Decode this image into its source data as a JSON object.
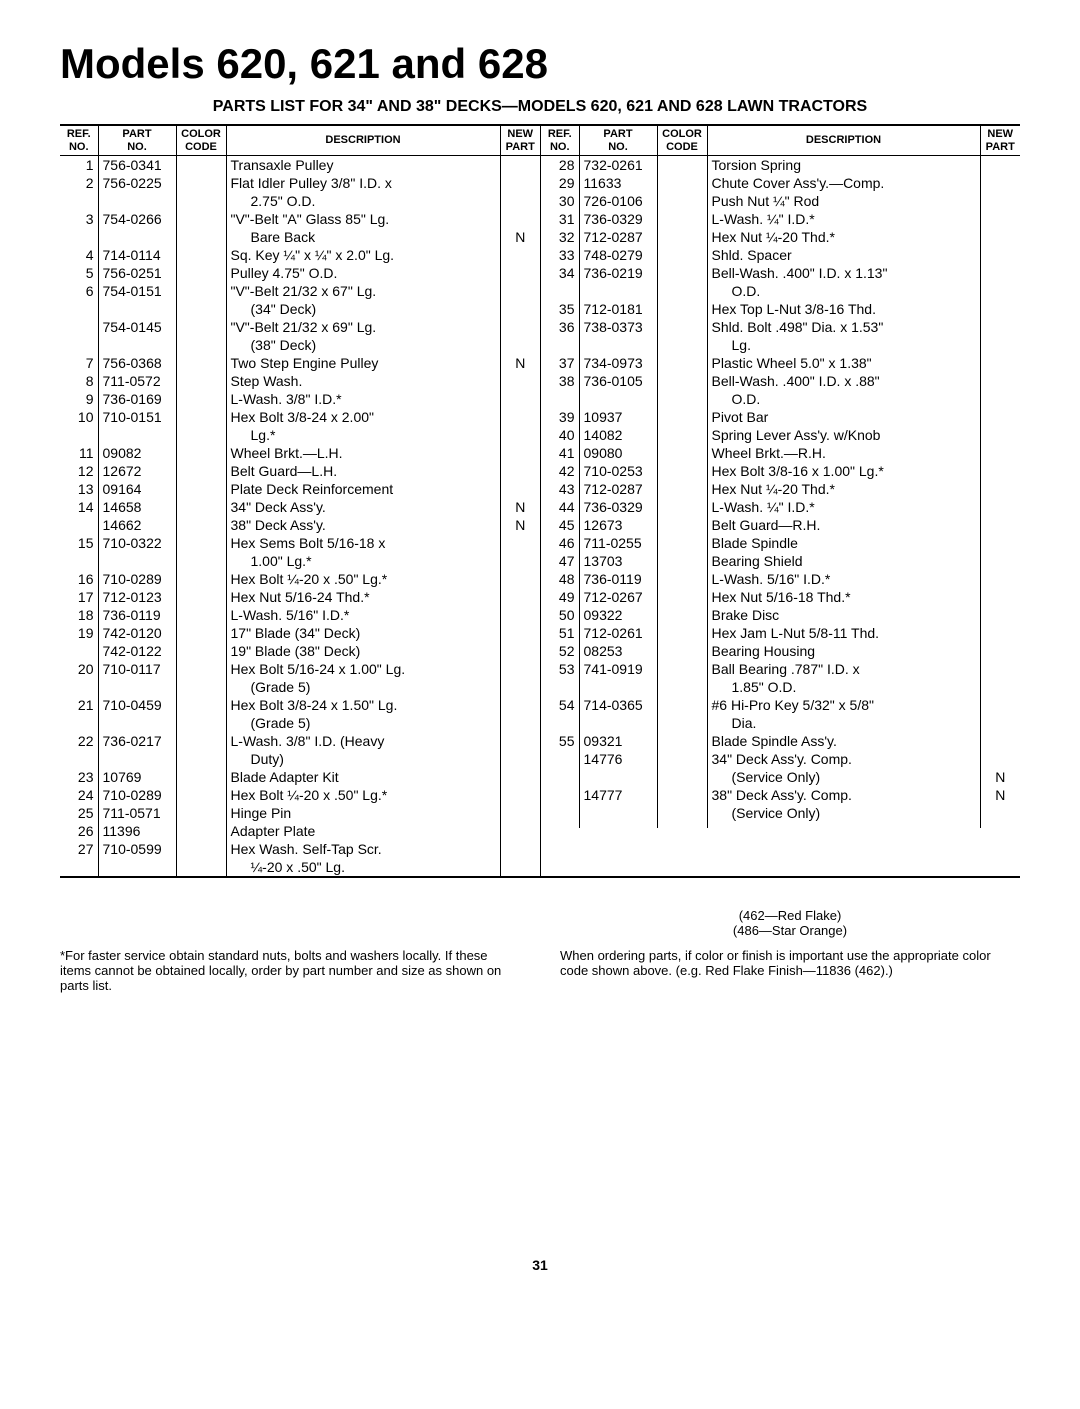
{
  "title": "Models 620, 621 and 628",
  "subtitle": "PARTS LIST FOR 34\" AND 38\" DECKS—MODELS 620, 621 AND 628 LAWN TRACTORS",
  "headers": {
    "ref": "REF.\nNO.",
    "part": "PART\nNO.",
    "color": "COLOR\nCODE",
    "desc": "DESCRIPTION",
    "new": "NEW\nPART"
  },
  "left_rows": [
    {
      "ref": "1",
      "part": "756-0341",
      "color": "",
      "desc": "Transaxle Pulley",
      "new": ""
    },
    {
      "ref": "2",
      "part": "756-0225",
      "color": "",
      "desc": "Flat Idler Pulley 3/8\" I.D. x",
      "new": ""
    },
    {
      "ref": "",
      "part": "",
      "color": "",
      "desc": "  2.75\" O.D.",
      "new": ""
    },
    {
      "ref": "3",
      "part": "754-0266",
      "color": "",
      "desc": "\"V\"-Belt \"A\" Glass 85\" Lg.",
      "new": ""
    },
    {
      "ref": "",
      "part": "",
      "color": "",
      "desc": "  Bare Back",
      "new": "N"
    },
    {
      "ref": "4",
      "part": "714-0114",
      "color": "",
      "desc": "Sq. Key ¼\" x ¼\" x 2.0\" Lg.",
      "new": ""
    },
    {
      "ref": "5",
      "part": "756-0251",
      "color": "",
      "desc": "Pulley 4.75\" O.D.",
      "new": ""
    },
    {
      "ref": "6",
      "part": "754-0151",
      "color": "",
      "desc": "\"V\"-Belt 21/32 x 67\" Lg.",
      "new": ""
    },
    {
      "ref": "",
      "part": "",
      "color": "",
      "desc": "  (34\" Deck)",
      "new": ""
    },
    {
      "ref": "",
      "part": "754-0145",
      "color": "",
      "desc": "\"V\"-Belt 21/32 x 69\" Lg.",
      "new": ""
    },
    {
      "ref": "",
      "part": "",
      "color": "",
      "desc": "  (38\" Deck)",
      "new": ""
    },
    {
      "ref": "7",
      "part": "756-0368",
      "color": "",
      "desc": "Two Step Engine Pulley",
      "new": "N"
    },
    {
      "ref": "8",
      "part": "711-0572",
      "color": "",
      "desc": "Step Wash.",
      "new": ""
    },
    {
      "ref": "9",
      "part": "736-0169",
      "color": "",
      "desc": "L-Wash. 3/8\" I.D.*",
      "new": ""
    },
    {
      "ref": "10",
      "part": "710-0151",
      "color": "",
      "desc": "Hex Bolt 3/8-24 x 2.00\"",
      "new": ""
    },
    {
      "ref": "",
      "part": "",
      "color": "",
      "desc": "  Lg.*",
      "new": ""
    },
    {
      "ref": "11",
      "part": "09082",
      "color": "",
      "desc": "Wheel Brkt.—L.H.",
      "new": ""
    },
    {
      "ref": "12",
      "part": "12672",
      "color": "",
      "desc": "Belt Guard—L.H.",
      "new": ""
    },
    {
      "ref": "13",
      "part": "09164",
      "color": "",
      "desc": "Plate Deck Reinforcement",
      "new": ""
    },
    {
      "ref": "14",
      "part": "14658",
      "color": "",
      "desc": "34\" Deck Ass'y.",
      "new": "N"
    },
    {
      "ref": "",
      "part": "14662",
      "color": "",
      "desc": "38\" Deck Ass'y.",
      "new": "N"
    },
    {
      "ref": "15",
      "part": "710-0322",
      "color": "",
      "desc": "Hex Sems Bolt 5/16-18 x",
      "new": ""
    },
    {
      "ref": "",
      "part": "",
      "color": "",
      "desc": "  1.00\" Lg.*",
      "new": ""
    },
    {
      "ref": "16",
      "part": "710-0289",
      "color": "",
      "desc": "Hex Bolt ¼-20 x .50\" Lg.*",
      "new": ""
    },
    {
      "ref": "17",
      "part": "712-0123",
      "color": "",
      "desc": "Hex Nut 5/16-24 Thd.*",
      "new": ""
    },
    {
      "ref": "18",
      "part": "736-0119",
      "color": "",
      "desc": "L-Wash. 5/16\" I.D.*",
      "new": ""
    },
    {
      "ref": "19",
      "part": "742-0120",
      "color": "",
      "desc": "17\" Blade (34\" Deck)",
      "new": ""
    },
    {
      "ref": "",
      "part": "742-0122",
      "color": "",
      "desc": "19\" Blade (38\" Deck)",
      "new": ""
    },
    {
      "ref": "20",
      "part": "710-0117",
      "color": "",
      "desc": "Hex Bolt 5/16-24 x 1.00\" Lg.",
      "new": ""
    },
    {
      "ref": "",
      "part": "",
      "color": "",
      "desc": "  (Grade 5)",
      "new": ""
    },
    {
      "ref": "21",
      "part": "710-0459",
      "color": "",
      "desc": "Hex Bolt 3/8-24 x 1.50\" Lg.",
      "new": ""
    },
    {
      "ref": "",
      "part": "",
      "color": "",
      "desc": "  (Grade 5)",
      "new": ""
    },
    {
      "ref": "22",
      "part": "736-0217",
      "color": "",
      "desc": "L-Wash. 3/8\" I.D. (Heavy",
      "new": ""
    },
    {
      "ref": "",
      "part": "",
      "color": "",
      "desc": "  Duty)",
      "new": ""
    },
    {
      "ref": "23",
      "part": "10769",
      "color": "",
      "desc": "Blade Adapter Kit",
      "new": ""
    },
    {
      "ref": "24",
      "part": "710-0289",
      "color": "",
      "desc": "Hex Bolt ¼-20 x .50\" Lg.*",
      "new": ""
    },
    {
      "ref": "25",
      "part": "711-0571",
      "color": "",
      "desc": "Hinge Pin",
      "new": ""
    },
    {
      "ref": "26",
      "part": "11396",
      "color": "",
      "desc": "Adapter Plate",
      "new": ""
    },
    {
      "ref": "27",
      "part": "710-0599",
      "color": "",
      "desc": "Hex Wash. Self-Tap Scr.",
      "new": ""
    },
    {
      "ref": "",
      "part": "",
      "color": "",
      "desc": "  ¼-20 x .50\" Lg.",
      "new": ""
    }
  ],
  "right_rows": [
    {
      "ref": "28",
      "part": "732-0261",
      "color": "",
      "desc": "Torsion Spring",
      "new": ""
    },
    {
      "ref": "29",
      "part": "11633",
      "color": "",
      "desc": "Chute Cover Ass'y.—Comp.",
      "new": ""
    },
    {
      "ref": "30",
      "part": "726-0106",
      "color": "",
      "desc": "Push Nut ¼\" Rod",
      "new": ""
    },
    {
      "ref": "31",
      "part": "736-0329",
      "color": "",
      "desc": "L-Wash. ¼\" I.D.*",
      "new": ""
    },
    {
      "ref": "32",
      "part": "712-0287",
      "color": "",
      "desc": "Hex Nut ¼-20 Thd.*",
      "new": ""
    },
    {
      "ref": "33",
      "part": "748-0279",
      "color": "",
      "desc": "Shld. Spacer",
      "new": ""
    },
    {
      "ref": "34",
      "part": "736-0219",
      "color": "",
      "desc": "Bell-Wash. .400\" I.D. x 1.13\"",
      "new": ""
    },
    {
      "ref": "",
      "part": "",
      "color": "",
      "desc": "  O.D.",
      "new": ""
    },
    {
      "ref": "35",
      "part": "712-0181",
      "color": "",
      "desc": "Hex Top L-Nut 3/8-16 Thd.",
      "new": ""
    },
    {
      "ref": "36",
      "part": "738-0373",
      "color": "",
      "desc": "Shld. Bolt .498\" Dia. x 1.53\"",
      "new": ""
    },
    {
      "ref": "",
      "part": "",
      "color": "",
      "desc": "  Lg.",
      "new": ""
    },
    {
      "ref": "37",
      "part": "734-0973",
      "color": "",
      "desc": "Plastic Wheel 5.0\" x 1.38\"",
      "new": ""
    },
    {
      "ref": "38",
      "part": "736-0105",
      "color": "",
      "desc": "Bell-Wash. .400\" I.D. x .88\"",
      "new": ""
    },
    {
      "ref": "",
      "part": "",
      "color": "",
      "desc": "  O.D.",
      "new": ""
    },
    {
      "ref": "39",
      "part": "10937",
      "color": "",
      "desc": "Pivot Bar",
      "new": ""
    },
    {
      "ref": "40",
      "part": "14082",
      "color": "",
      "desc": "Spring Lever Ass'y. w/Knob",
      "new": ""
    },
    {
      "ref": "41",
      "part": "09080",
      "color": "",
      "desc": "Wheel Brkt.—R.H.",
      "new": ""
    },
    {
      "ref": "42",
      "part": "710-0253",
      "color": "",
      "desc": "Hex Bolt 3/8-16 x 1.00\" Lg.*",
      "new": ""
    },
    {
      "ref": "43",
      "part": "712-0287",
      "color": "",
      "desc": "Hex Nut ¼-20 Thd.*",
      "new": ""
    },
    {
      "ref": "44",
      "part": "736-0329",
      "color": "",
      "desc": "L-Wash. ¼\" I.D.*",
      "new": ""
    },
    {
      "ref": "45",
      "part": "12673",
      "color": "",
      "desc": "Belt Guard—R.H.",
      "new": ""
    },
    {
      "ref": "46",
      "part": "711-0255",
      "color": "",
      "desc": "Blade Spindle",
      "new": ""
    },
    {
      "ref": "47",
      "part": "13703",
      "color": "",
      "desc": "Bearing Shield",
      "new": ""
    },
    {
      "ref": "48",
      "part": "736-0119",
      "color": "",
      "desc": "L-Wash. 5/16\" I.D.*",
      "new": ""
    },
    {
      "ref": "49",
      "part": "712-0267",
      "color": "",
      "desc": "Hex Nut 5/16-18 Thd.*",
      "new": ""
    },
    {
      "ref": "50",
      "part": "09322",
      "color": "",
      "desc": "Brake Disc",
      "new": ""
    },
    {
      "ref": "51",
      "part": "712-0261",
      "color": "",
      "desc": "Hex Jam L-Nut 5/8-11 Thd.",
      "new": ""
    },
    {
      "ref": "52",
      "part": "08253",
      "color": "",
      "desc": "Bearing Housing",
      "new": ""
    },
    {
      "ref": "53",
      "part": "741-0919",
      "color": "",
      "desc": "Ball Bearing .787\" I.D. x",
      "new": ""
    },
    {
      "ref": "",
      "part": "",
      "color": "",
      "desc": "  1.85\" O.D.",
      "new": ""
    },
    {
      "ref": "54",
      "part": "714-0365",
      "color": "",
      "desc": "#6 Hi-Pro Key 5/32\" x 5/8\"",
      "new": ""
    },
    {
      "ref": "",
      "part": "",
      "color": "",
      "desc": "  Dia.",
      "new": ""
    },
    {
      "ref": "55",
      "part": "09321",
      "color": "",
      "desc": "Blade Spindle Ass'y.",
      "new": ""
    },
    {
      "ref": "",
      "part": "14776",
      "color": "",
      "desc": "34\" Deck Ass'y. Comp.",
      "new": ""
    },
    {
      "ref": "",
      "part": "",
      "color": "",
      "desc": "  (Service Only)",
      "new": "N"
    },
    {
      "ref": "",
      "part": "14777",
      "color": "",
      "desc": "38\" Deck Ass'y. Comp.",
      "new": "N"
    },
    {
      "ref": "",
      "part": "",
      "color": "",
      "desc": "  (Service Only)",
      "new": ""
    },
    {
      "ref": "",
      "part": "",
      "color": "",
      "desc": "",
      "new": ""
    },
    {
      "ref": "",
      "part": "",
      "color": "",
      "desc": "",
      "new": ""
    },
    {
      "ref": "",
      "part": "",
      "color": "",
      "desc": "",
      "new": ""
    }
  ],
  "footnote_left": "*For faster service obtain standard nuts, bolts and washers locally. If these items cannot be obtained locally, order by part number and size as shown on parts list.",
  "color_codes": [
    "(462—Red Flake)",
    "(486—Star Orange)"
  ],
  "footnote_right": "When ordering parts, if color or finish is important use the appropriate color code shown above. (e.g. Red Flake Finish—11836 (462).)",
  "page_number": "31"
}
